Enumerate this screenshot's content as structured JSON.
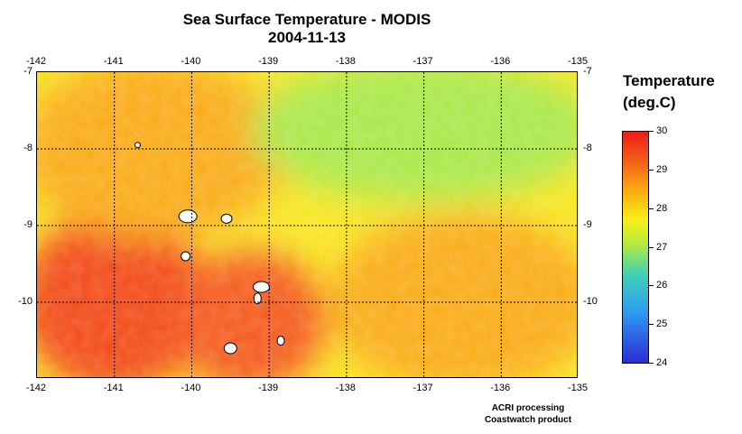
{
  "title": "Sea Surface Temperature - MODIS",
  "date": "2004-11-13",
  "legend": {
    "title_line1": "Temperature",
    "title_line2": "(deg.C)"
  },
  "credit": {
    "line1": "ACRI processing",
    "line2": "Coastwatch product"
  },
  "colors": {
    "min": "#2b2bd6",
    "low": "#2f9cf0",
    "mid": "#f6ee1a",
    "high": "#ee1c18",
    "land": "#ffffff",
    "grid": "#000000"
  },
  "chart_data": {
    "type": "heatmap",
    "x_range": [
      -142,
      -135
    ],
    "y_range": [
      -11,
      -7
    ],
    "x_ticks": [
      "-142",
      "-141",
      "-140",
      "-139",
      "-138",
      "-137",
      "-136",
      "-135"
    ],
    "y_ticks": [
      "-7",
      "-8",
      "-9",
      "-10"
    ],
    "colorbar_range": [
      24,
      30
    ],
    "colorbar_ticks": [
      "30",
      "29",
      "28",
      "27",
      "26",
      "25",
      "24"
    ],
    "grid": true,
    "regions": [
      {
        "lon": [
          -142,
          -140
        ],
        "lat": [
          -9,
          -11
        ],
        "temp": 29.5
      },
      {
        "lon": [
          -140,
          -138.5
        ],
        "lat": [
          -9.5,
          -11
        ],
        "temp": 29.3
      },
      {
        "lon": [
          -142,
          -139
        ],
        "lat": [
          -7,
          -9
        ],
        "temp": 28.5
      },
      {
        "lon": [
          -139,
          -135
        ],
        "lat": [
          -7,
          -8.5
        ],
        "temp": 27.0
      },
      {
        "lon": [
          -138,
          -135
        ],
        "lat": [
          -9,
          -11
        ],
        "temp": 28.5
      }
    ],
    "islands": [
      {
        "lon": -140.05,
        "lat": -8.88
      },
      {
        "lon": -139.55,
        "lat": -8.91
      },
      {
        "lon": -140.08,
        "lat": -9.4
      },
      {
        "lon": -139.1,
        "lat": -9.8
      },
      {
        "lon": -139.15,
        "lat": -9.95
      },
      {
        "lon": -138.85,
        "lat": -10.5
      },
      {
        "lon": -139.5,
        "lat": -10.6
      },
      {
        "lon": -140.7,
        "lat": -7.95
      }
    ]
  }
}
